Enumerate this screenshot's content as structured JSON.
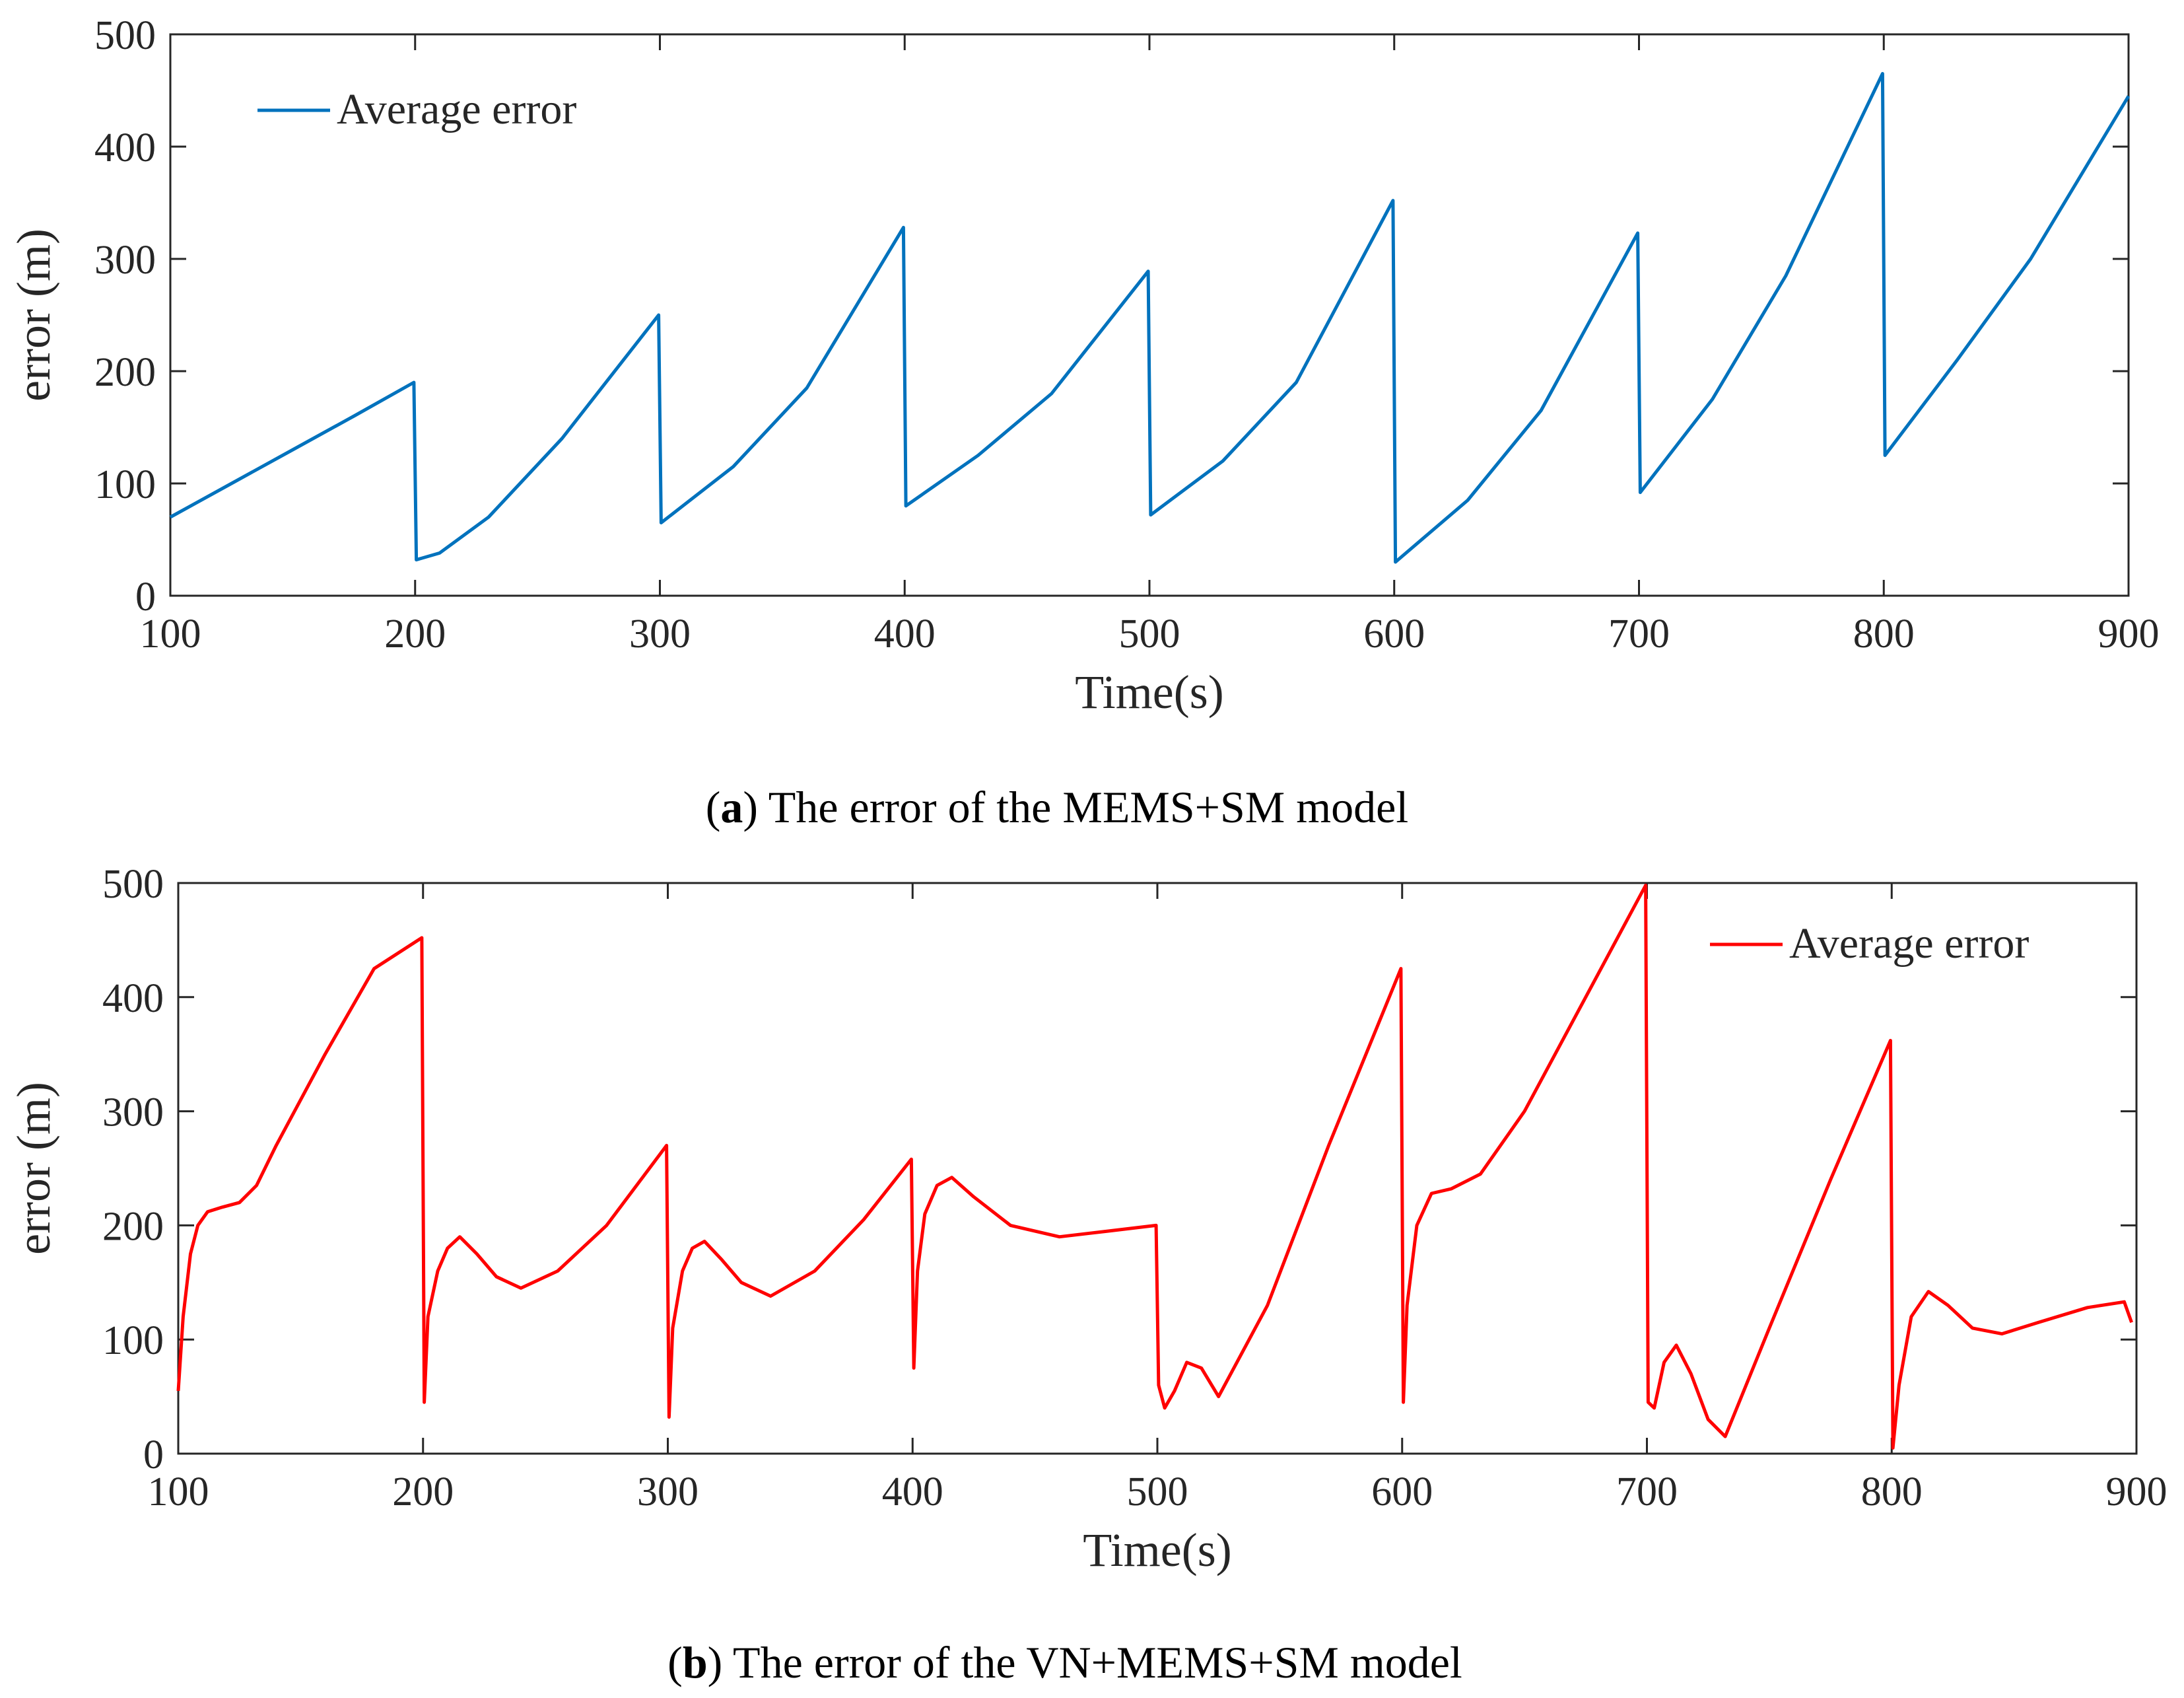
{
  "chart_data": [
    {
      "type": "line",
      "panel": "a",
      "caption_letter": "a",
      "caption_text": ") The error of the MEMS+SM model",
      "xlabel": "Time(s)",
      "ylabel": "error (m)",
      "xlim": [
        100,
        900
      ],
      "ylim": [
        0,
        500
      ],
      "xticks": [
        100,
        200,
        300,
        400,
        500,
        600,
        700,
        800,
        900
      ],
      "yticks": [
        0,
        100,
        200,
        300,
        400,
        500
      ],
      "legend_position": "top-left",
      "series": [
        {
          "name": "Average error",
          "color": "#0072BD",
          "x": [
            100,
            125,
            150,
            175,
            199.5,
            200.5,
            210,
            230,
            260,
            299.5,
            300.5,
            330,
            360,
            399.5,
            400.5,
            430,
            460,
            499.5,
            500.5,
            530,
            560,
            599.5,
            600.5,
            630,
            660,
            699.5,
            700.5,
            730,
            760,
            799.5,
            800.5,
            830,
            860,
            900
          ],
          "y": [
            70,
            100,
            130,
            160,
            190,
            32,
            38,
            70,
            140,
            250,
            65,
            115,
            185,
            328,
            80,
            125,
            180,
            289,
            72,
            120,
            190,
            352,
            30,
            85,
            165,
            323,
            92,
            175,
            285,
            465,
            125,
            210,
            300,
            445
          ]
        }
      ]
    },
    {
      "type": "line",
      "panel": "b",
      "caption_letter": "b",
      "caption_text": ") The error of the VN+MEMS+SM model",
      "xlabel": "Time(s)",
      "ylabel": "error (m)",
      "xlim": [
        100,
        900
      ],
      "ylim": [
        0,
        500
      ],
      "xticks": [
        100,
        200,
        300,
        400,
        500,
        600,
        700,
        800,
        900
      ],
      "yticks": [
        0,
        100,
        200,
        300,
        400,
        500
      ],
      "legend_position": "top-right",
      "series": [
        {
          "name": "Average error",
          "color": "#FF0000",
          "x": [
            100,
            102,
            105,
            108,
            112,
            118,
            125,
            132,
            140,
            160,
            180,
            199.5,
            200.5,
            202,
            206,
            210,
            215,
            222,
            230,
            240,
            255,
            275,
            299.5,
            300.5,
            302,
            306,
            310,
            315,
            322,
            330,
            342,
            360,
            380,
            399.5,
            400.5,
            402,
            405,
            410,
            416,
            425,
            440,
            460,
            480,
            499.5,
            500.5,
            503,
            507,
            512,
            518,
            525,
            545,
            570,
            599.5,
            600.5,
            602,
            606,
            612,
            620,
            632,
            650,
            675,
            699.5,
            700.5,
            703,
            707,
            712,
            718,
            725,
            732,
            750,
            775,
            799.5,
            800.5,
            803,
            808,
            815,
            823,
            833,
            845,
            860,
            880,
            895,
            898
          ],
          "y": [
            55,
            120,
            175,
            200,
            212,
            216,
            220,
            235,
            270,
            350,
            425,
            452,
            45,
            120,
            160,
            180,
            190,
            175,
            155,
            145,
            160,
            200,
            270,
            32,
            110,
            160,
            180,
            186,
            170,
            150,
            138,
            160,
            205,
            258,
            75,
            160,
            210,
            235,
            242,
            225,
            200,
            190,
            195,
            200,
            60,
            40,
            55,
            80,
            75,
            50,
            130,
            270,
            425,
            45,
            130,
            200,
            228,
            232,
            245,
            300,
            400,
            498,
            45,
            40,
            80,
            95,
            70,
            30,
            15,
            110,
            240,
            362,
            5,
            60,
            120,
            142,
            130,
            110,
            105,
            115,
            128,
            133,
            115
          ]
        }
      ]
    }
  ]
}
